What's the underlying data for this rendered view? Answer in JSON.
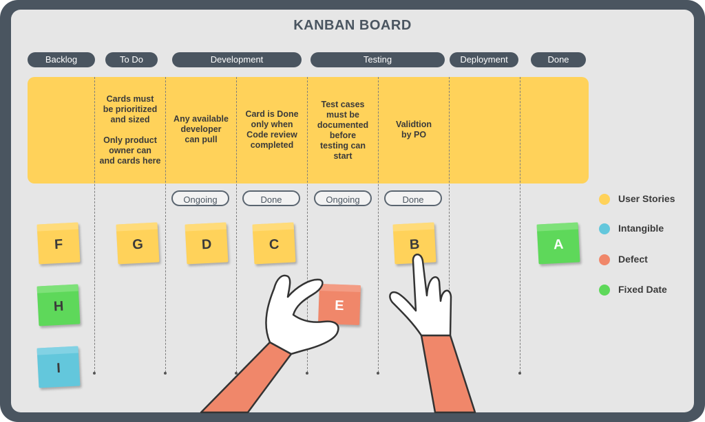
{
  "title": "KANBAN BOARD",
  "columns": [
    "Backlog",
    "To Do",
    "Development",
    "Testing",
    "Deployment",
    "Done"
  ],
  "policies": {
    "todo": "Cards must\nbe prioritized\nand sized\n\nOnly product\nowner can\nand cards here",
    "dev_ongoing": "Any available\ndeveloper\ncan pull",
    "dev_done": "Card is Done\nonly when\nCode review\ncompleted",
    "test_ongoing": "Test cases\nmust be\ndocumented\nbefore\ntesting can\nstart",
    "test_done": "Validtion\nby PO"
  },
  "sub_columns": [
    "Ongoing",
    "Done",
    "Ongoing",
    "Done"
  ],
  "cards": [
    {
      "label": "F",
      "type": "User Stories"
    },
    {
      "label": "H",
      "type": "Fixed Date"
    },
    {
      "label": "I",
      "type": "Intangible"
    },
    {
      "label": "G",
      "type": "User Stories"
    },
    {
      "label": "D",
      "type": "User Stories"
    },
    {
      "label": "C",
      "type": "User Stories"
    },
    {
      "label": "E",
      "type": "Defect"
    },
    {
      "label": "B",
      "type": "User Stories"
    },
    {
      "label": "A",
      "type": "Fixed Date"
    }
  ],
  "legend": [
    {
      "label": "User Stories",
      "color": "#ffd25a"
    },
    {
      "label": "Intangible",
      "color": "#63c7dc"
    },
    {
      "label": "Defect",
      "color": "#f0876a"
    },
    {
      "label": "Fixed Date",
      "color": "#5ed85a"
    }
  ]
}
